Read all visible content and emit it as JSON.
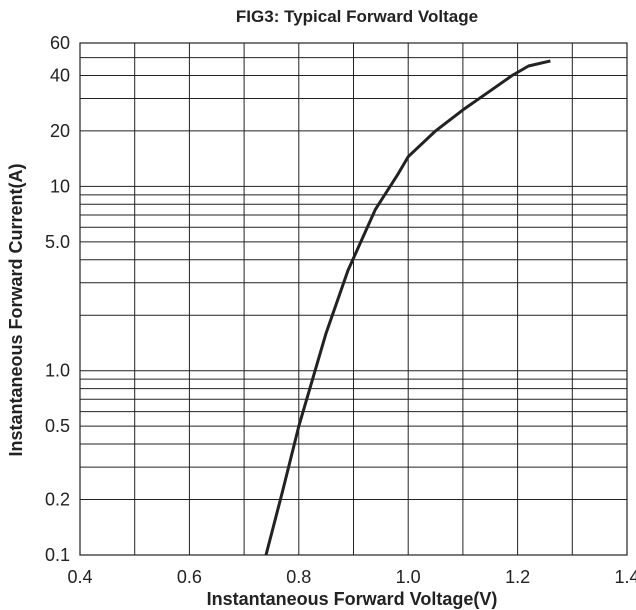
{
  "chart_data": {
    "type": "line",
    "title": "FIG3: Typical Forward Voltage",
    "xlabel": "Instantaneous Forward Voltage(V)",
    "ylabel": "Instantaneous Forward Current(A)",
    "xlim": [
      0.4,
      1.4
    ],
    "ylim": [
      0.1,
      60
    ],
    "y_scale": "log",
    "grid": true,
    "x_ticks": [
      "0.4",
      "0.6",
      "0.8",
      "1.0",
      "1.2",
      "1.4"
    ],
    "y_ticks": [
      "0.1",
      "0.2",
      "0.5",
      "1.0",
      "5.0",
      "10",
      "20",
      "40",
      "60"
    ],
    "colors": {
      "line": "#222222",
      "grid": "#222222"
    },
    "series": [
      {
        "x": [
          0.74,
          0.77,
          0.8,
          0.85,
          0.89,
          0.94,
          0.98,
          1.0,
          1.05,
          1.1,
          1.15,
          1.19,
          1.22,
          1.26
        ],
        "y": [
          0.1,
          0.22,
          0.5,
          1.6,
          3.5,
          7.5,
          11.5,
          14.5,
          20.0,
          26.0,
          33.0,
          40.0,
          45.0,
          48.0
        ]
      }
    ]
  }
}
